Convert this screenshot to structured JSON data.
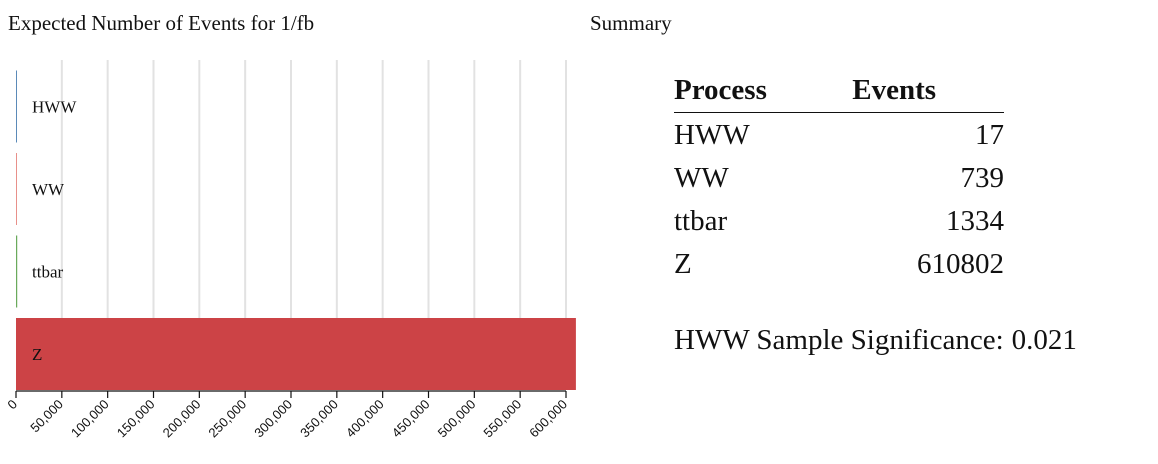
{
  "chart_data": {
    "type": "bar",
    "orientation": "horizontal",
    "title": "Expected Number of Events for 1/fb",
    "categories": [
      "HWW",
      "WW",
      "ttbar",
      "Z"
    ],
    "values": [
      17,
      739,
      1334,
      610802
    ],
    "xlim": [
      0,
      600000
    ],
    "x_ticks": [
      0,
      50000,
      100000,
      150000,
      200000,
      250000,
      300000,
      350000,
      400000,
      450000,
      500000,
      550000,
      600000
    ],
    "x_tick_labels": [
      "0",
      "50,000",
      "100,000",
      "150,000",
      "200,000",
      "250,000",
      "300,000",
      "350,000",
      "400,000",
      "450,000",
      "500,000",
      "550,000",
      "600,000"
    ],
    "grid": true,
    "bar_colors": [
      "#5b8ab8",
      "#e8908a",
      "#6aaa5c",
      "#cc4346"
    ]
  },
  "summary": {
    "title": "Summary",
    "headers": {
      "process": "Process",
      "events": "Events"
    },
    "rows": [
      {
        "process": "HWW",
        "events": "17"
      },
      {
        "process": "WW",
        "events": "739"
      },
      {
        "process": "ttbar",
        "events": "1334"
      },
      {
        "process": "Z",
        "events": "610802"
      }
    ],
    "significance_label": "HWW Sample Significance:",
    "significance_value": "0.021"
  }
}
